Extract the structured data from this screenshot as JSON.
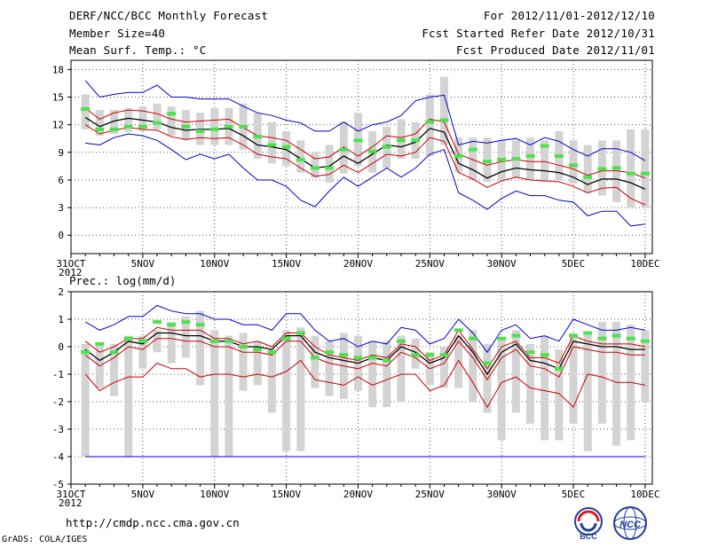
{
  "header": {
    "title": "DERF/NCC/BCC Monthly Forecast",
    "member_size": "Member Size=40",
    "variable": "Mean Surf. Temp.: °C",
    "period": "For 2012/11/01-2012/12/10",
    "fcst_started": "Fcst Started Refer Date 2012/10/31",
    "fcst_produced": "Fcst Produced Date 2012/11/01"
  },
  "footer": {
    "url": "http://cmdp.ncc.cma.gov.cn",
    "grads": "GrADS: COLA/IGES",
    "logo_left_text": "BCC",
    "logo_right_text": "NCC"
  },
  "colors": {
    "envelope": "#0000cc",
    "ensemble_mean": "#000000",
    "spread": "#cc0000",
    "observed": "#4de14d",
    "boxes": "#d3d3d3"
  },
  "chart_data": [
    {
      "type": "box-ensemble",
      "title": "Mean Surf. Temp.: °C",
      "x_tick_labels": [
        "31OCT",
        "5NOV",
        "10NOV",
        "15NOV",
        "20NOV",
        "25NOV",
        "30NOV",
        "5DEC",
        "10DEC"
      ],
      "x_tick_days": [
        0,
        5,
        10,
        15,
        20,
        25,
        30,
        35,
        40
      ],
      "year_label": "2012",
      "ylim": [
        -2,
        19
      ],
      "y_ticks": [
        0,
        3,
        6,
        9,
        12,
        15,
        18
      ],
      "days": [
        1,
        2,
        3,
        4,
        5,
        6,
        7,
        8,
        9,
        10,
        11,
        12,
        13,
        14,
        15,
        16,
        17,
        18,
        19,
        20,
        21,
        22,
        23,
        24,
        25,
        26,
        27,
        28,
        29,
        30,
        31,
        32,
        33,
        34,
        35,
        36,
        37,
        38,
        39,
        40
      ],
      "box_low": [
        11.5,
        10.8,
        11.0,
        11.2,
        11.3,
        11.5,
        10.8,
        10.3,
        9.8,
        9.8,
        9.8,
        9.3,
        8.3,
        7.8,
        7.5,
        6.8,
        6.2,
        5.7,
        6.7,
        7.5,
        6.8,
        7.3,
        8.3,
        8.3,
        8.6,
        9.8,
        6.8,
        6.0,
        5.8,
        6.0,
        6.2,
        6.0,
        5.8,
        6.0,
        5.6,
        4.6,
        4.3,
        3.6,
        3.0,
        3.0
      ],
      "box_high": [
        15.3,
        13.6,
        13.6,
        13.8,
        14.0,
        14.3,
        14.0,
        13.6,
        13.3,
        13.8,
        13.8,
        14.3,
        13.3,
        12.3,
        11.3,
        10.3,
        9.0,
        9.8,
        12.3,
        13.3,
        11.3,
        11.8,
        12.6,
        12.3,
        15.3,
        17.2,
        10.6,
        10.6,
        10.6,
        10.3,
        10.3,
        10.6,
        10.3,
        11.3,
        10.3,
        9.8,
        10.3,
        10.3,
        11.5,
        11.5
      ],
      "series": [
        {
          "name": "max",
          "color": "#0000cc",
          "values": [
            16.8,
            15.0,
            15.3,
            15.5,
            15.5,
            16.3,
            15.0,
            15.0,
            14.8,
            14.8,
            14.8,
            14.0,
            13.3,
            13.0,
            12.5,
            12.2,
            11.3,
            11.3,
            12.3,
            11.3,
            12.0,
            12.3,
            13.0,
            14.6,
            15.0,
            15.2,
            9.8,
            10.2,
            10.0,
            10.3,
            10.5,
            9.8,
            10.6,
            10.2,
            9.3,
            8.6,
            9.4,
            9.4,
            9.0,
            8.1
          ]
        },
        {
          "name": "upper",
          "color": "#cc0000",
          "values": [
            13.8,
            12.6,
            13.3,
            13.6,
            13.5,
            13.2,
            12.6,
            12.3,
            12.4,
            12.5,
            12.6,
            11.7,
            10.8,
            10.6,
            10.3,
            9.3,
            8.3,
            8.5,
            9.6,
            8.6,
            9.6,
            10.8,
            10.6,
            11.0,
            12.6,
            12.3,
            8.8,
            8.2,
            7.6,
            8.0,
            8.2,
            8.0,
            8.0,
            7.6,
            7.2,
            6.5,
            7.0,
            7.0,
            6.8,
            6.2
          ]
        },
        {
          "name": "mean",
          "color": "#000000",
          "values": [
            12.8,
            11.8,
            12.4,
            12.7,
            12.5,
            12.3,
            11.7,
            11.4,
            11.5,
            11.5,
            11.6,
            10.8,
            9.8,
            9.6,
            9.3,
            8.3,
            7.3,
            7.5,
            8.6,
            7.8,
            8.8,
            9.8,
            9.6,
            10.1,
            11.6,
            11.2,
            7.8,
            7.1,
            6.2,
            6.9,
            7.3,
            7.1,
            7.0,
            6.8,
            6.3,
            5.5,
            6.1,
            6.1,
            5.7,
            5.0
          ]
        },
        {
          "name": "lower",
          "color": "#cc0000",
          "values": [
            12.0,
            11.0,
            11.4,
            11.7,
            11.5,
            11.4,
            10.7,
            10.4,
            10.6,
            10.5,
            10.6,
            9.8,
            8.8,
            8.5,
            8.3,
            7.3,
            6.4,
            6.6,
            7.6,
            6.8,
            7.8,
            8.8,
            8.6,
            9.0,
            10.6,
            10.2,
            6.8,
            6.1,
            5.2,
            5.9,
            6.3,
            6.0,
            5.9,
            5.8,
            5.3,
            4.6,
            5.1,
            5.2,
            4.0,
            3.3
          ]
        },
        {
          "name": "min",
          "color": "#0000cc",
          "values": [
            10.0,
            9.8,
            10.6,
            11.0,
            10.8,
            10.3,
            9.3,
            8.2,
            8.8,
            8.3,
            8.8,
            7.3,
            6.0,
            6.0,
            5.3,
            3.8,
            3.1,
            4.8,
            6.3,
            5.3,
            6.3,
            7.3,
            6.3,
            7.3,
            8.8,
            9.3,
            4.6,
            3.8,
            2.8,
            4.0,
            4.8,
            4.3,
            4.3,
            3.8,
            3.6,
            2.1,
            2.6,
            2.6,
            1.0,
            1.2
          ]
        }
      ],
      "observed": [
        13.7,
        11.5,
        11.5,
        11.8,
        11.8,
        12.2,
        13.2,
        11.8,
        11.3,
        11.5,
        11.8,
        11.8,
        10.7,
        9.8,
        9.6,
        8.2,
        7.3,
        7.3,
        9.3,
        10.3,
        9.1,
        9.6,
        10.3,
        10.3,
        12.3,
        12.5,
        8.6,
        9.3,
        8.0,
        8.2,
        8.3,
        8.6,
        9.7,
        8.6,
        7.6,
        6.3,
        7.2,
        7.3,
        6.7,
        6.7
      ]
    },
    {
      "type": "box-ensemble",
      "title": "Prec.: log(mm/d)",
      "x_tick_labels": [
        "31OCT",
        "5NOV",
        "10NOV",
        "15NOV",
        "20NOV",
        "25NOV",
        "30NOV",
        "5DEC",
        "10DEC"
      ],
      "x_tick_days": [
        0,
        5,
        10,
        15,
        20,
        25,
        30,
        35,
        40
      ],
      "year_label": "2012",
      "ylim": [
        -5,
        2
      ],
      "y_ticks": [
        -5,
        -4,
        -3,
        -2,
        -1,
        0,
        1,
        2
      ],
      "floor_value": -4,
      "days": [
        1,
        2,
        3,
        4,
        5,
        6,
        7,
        8,
        9,
        10,
        11,
        12,
        13,
        14,
        15,
        16,
        17,
        18,
        19,
        20,
        21,
        22,
        23,
        24,
        25,
        26,
        27,
        28,
        29,
        30,
        31,
        32,
        33,
        34,
        35,
        36,
        37,
        38,
        39,
        40
      ],
      "box_low": [
        -4,
        -1.5,
        -1.8,
        -4,
        -0.8,
        -0.2,
        -0.6,
        -0.4,
        -1.4,
        -4,
        -4,
        -1.6,
        -1.4,
        -2.4,
        -3.8,
        -3.8,
        -1.5,
        -1.8,
        -1.9,
        -1.6,
        -2.2,
        -2.2,
        -2.0,
        -0.8,
        -1.4,
        -1.5,
        -1.5,
        -2.0,
        -2.4,
        -3.4,
        -2.4,
        -2.8,
        -3.4,
        -3.4,
        -2.8,
        -3.8,
        -2.8,
        -3.6,
        -3.4,
        -2.0
      ],
      "box_high": [
        0.1,
        0.1,
        0.1,
        0.4,
        0.4,
        0.6,
        0.9,
        1.1,
        1.3,
        0.6,
        0.4,
        0.5,
        0.2,
        -0.1,
        0.6,
        0.7,
        0.4,
        0.2,
        0.5,
        0.4,
        0.2,
        0.2,
        0.4,
        0.3,
        -0.2,
        0.0,
        0.4,
        0.6,
        0.1,
        0.3,
        0.6,
        0.1,
        0.4,
        -0.1,
        0.5,
        0.5,
        0.9,
        0.9,
        0.8,
        0.6
      ],
      "series": [
        {
          "name": "max",
          "color": "#0000cc",
          "values": [
            0.9,
            0.6,
            0.8,
            1.1,
            1.1,
            1.5,
            1.3,
            1.2,
            1.2,
            1.0,
            1.0,
            0.8,
            0.8,
            0.6,
            1.2,
            1.2,
            0.6,
            0.2,
            0.3,
            0.0,
            0.2,
            0.1,
            0.7,
            0.6,
            0.1,
            0.3,
            1.0,
            0.5,
            -0.2,
            0.6,
            0.8,
            0.3,
            0.4,
            0.2,
            1.0,
            0.8,
            0.6,
            0.6,
            0.7,
            0.6
          ]
        },
        {
          "name": "upper",
          "color": "#cc0000",
          "values": [
            0.2,
            -0.2,
            0.0,
            0.3,
            0.3,
            0.7,
            0.6,
            0.6,
            0.6,
            0.3,
            0.3,
            0.1,
            0.2,
            0.0,
            0.5,
            0.5,
            0.0,
            -0.3,
            -0.4,
            -0.5,
            -0.3,
            -0.4,
            0.1,
            0.0,
            -0.5,
            -0.3,
            0.6,
            -0.1,
            -0.8,
            0.0,
            0.2,
            -0.4,
            -0.4,
            -0.6,
            0.4,
            0.2,
            0.1,
            0.1,
            0.1,
            0.0
          ]
        },
        {
          "name": "mean",
          "color": "#000000",
          "values": [
            -0.1,
            -0.5,
            -0.2,
            0.2,
            0.1,
            0.5,
            0.5,
            0.4,
            0.4,
            0.2,
            0.2,
            0.0,
            0.0,
            -0.1,
            0.4,
            0.4,
            -0.2,
            -0.4,
            -0.5,
            -0.6,
            -0.4,
            -0.5,
            0.0,
            -0.2,
            -0.6,
            -0.4,
            0.4,
            -0.2,
            -1.0,
            -0.2,
            0.1,
            -0.5,
            -0.6,
            -0.8,
            0.2,
            0.1,
            0.0,
            0.0,
            -0.1,
            -0.1
          ]
        },
        {
          "name": "lower",
          "color": "#cc0000",
          "values": [
            -0.3,
            -0.7,
            -0.4,
            0.0,
            -0.1,
            0.3,
            0.3,
            0.2,
            0.2,
            0.0,
            0.0,
            -0.2,
            -0.2,
            -0.3,
            0.2,
            0.2,
            -0.4,
            -0.6,
            -0.7,
            -0.8,
            -0.6,
            -0.7,
            -0.2,
            -0.4,
            -0.8,
            -0.6,
            0.2,
            -0.4,
            -1.2,
            -0.4,
            -0.1,
            -0.7,
            -0.8,
            -1.1,
            0.0,
            -0.1,
            -0.2,
            -0.2,
            -0.3,
            -0.3
          ]
        },
        {
          "name": "min",
          "color": "#cc0000",
          "values": [
            -1.0,
            -1.6,
            -1.3,
            -1.1,
            -1.1,
            -0.6,
            -0.8,
            -0.8,
            -1.1,
            -1.0,
            -1.0,
            -1.1,
            -1.0,
            -1.1,
            -0.9,
            -0.5,
            -1.2,
            -1.3,
            -1.4,
            -1.1,
            -1.4,
            -1.2,
            -1.0,
            -1.0,
            -1.6,
            -1.4,
            -0.5,
            -1.3,
            -2.2,
            -1.3,
            -1.1,
            -1.5,
            -1.6,
            -1.7,
            -2.2,
            -1.0,
            -1.1,
            -1.3,
            -1.3,
            -1.4
          ]
        }
      ],
      "observed": [
        -0.2,
        0.1,
        -0.2,
        0.3,
        0.2,
        0.9,
        0.8,
        0.9,
        0.8,
        0.2,
        0.2,
        0.0,
        -0.1,
        -0.2,
        0.3,
        0.5,
        -0.4,
        -0.2,
        -0.3,
        -0.4,
        -0.4,
        -0.5,
        0.2,
        -0.3,
        -0.3,
        -0.3,
        0.6,
        0.3,
        -0.6,
        0.3,
        0.4,
        -0.2,
        -0.3,
        -0.8,
        0.4,
        0.5,
        0.3,
        0.4,
        0.3,
        0.2
      ]
    }
  ]
}
